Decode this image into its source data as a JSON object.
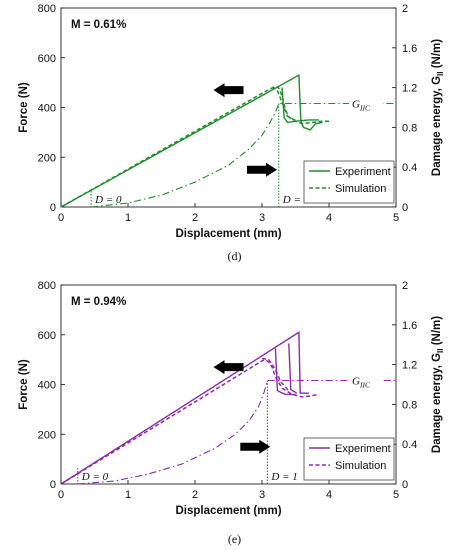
{
  "chart_data": [
    {
      "type": "line",
      "caption": "(d)",
      "annotation": "M = 0.61%",
      "color": "#1e8c2e",
      "xlabel": "Displacement (mm)",
      "ylabel": "Force (N)",
      "y2label_main": "Damage energy, G",
      "y2label_sub": "II",
      "y2label_unit": " (N/m)",
      "xlim": [
        0,
        5
      ],
      "ylim": [
        0,
        800
      ],
      "y2lim": [
        0,
        2
      ],
      "x_ticks": [
        "0",
        "1",
        "2",
        "3",
        "4",
        "5"
      ],
      "y_ticks": [
        "0",
        "200",
        "400",
        "600",
        "800"
      ],
      "y2_ticks": [
        "0",
        "0.4",
        "0.8",
        "1.2",
        "1.6",
        "2"
      ],
      "legend": {
        "position": "bottom-right",
        "entries": [
          "Experiment",
          "Simulation"
        ]
      },
      "series": [
        {
          "name": "Experiment",
          "style": "solid",
          "points": [
            [
              0,
              0
            ],
            [
              3.55,
              530
            ],
            [
              3.58,
              345
            ],
            [
              3.62,
              320
            ],
            [
              3.72,
              310
            ],
            [
              3.8,
              335
            ],
            [
              3.9,
              340
            ]
          ]
        },
        {
          "name": "",
          "style": "solid",
          "points": [
            [
              3.3,
              480
            ],
            [
              3.33,
              360
            ],
            [
              3.38,
              340
            ],
            [
              3.5,
              345
            ],
            [
              3.7,
              350
            ],
            [
              3.85,
              350
            ]
          ]
        },
        {
          "name": "Simulation",
          "style": "dashed",
          "points": [
            [
              0,
              0
            ],
            [
              3.1,
              472
            ],
            [
              3.2,
              485
            ],
            [
              3.25,
              478
            ],
            [
              3.3,
              445
            ],
            [
              3.35,
              390
            ],
            [
              3.4,
              362
            ],
            [
              3.5,
              345
            ],
            [
              3.6,
              335
            ],
            [
              3.75,
              340
            ],
            [
              3.9,
              345
            ],
            [
              4.0,
              345
            ]
          ]
        },
        {
          "name": "",
          "style": "dashed",
          "points": [
            [
              3.15,
              480
            ],
            [
              3.22,
              475
            ],
            [
              3.3,
              420
            ],
            [
              3.38,
              365
            ],
            [
              3.5,
              348
            ]
          ]
        },
        {
          "name": "Damage energy",
          "style": "dashdot",
          "axis": "y2",
          "points": [
            [
              0.45,
              0
            ],
            [
              1.0,
              0.04
            ],
            [
              1.5,
              0.12
            ],
            [
              2.0,
              0.25
            ],
            [
              2.5,
              0.42
            ],
            [
              2.8,
              0.58
            ],
            [
              3.0,
              0.72
            ],
            [
              3.12,
              0.85
            ],
            [
              3.2,
              0.95
            ],
            [
              3.25,
              1.04
            ],
            [
              3.3,
              1.04
            ],
            [
              5.0,
              1.04
            ]
          ]
        }
      ],
      "markers": [
        {
          "label": "D = 0",
          "x": 0.45
        },
        {
          "label": "D = 1",
          "x": 3.25
        }
      ],
      "gic_label": "G",
      "gic_sub": "IIC",
      "arrows": [
        {
          "direction": "left",
          "x": 2.5,
          "y": 470
        },
        {
          "direction": "right",
          "x": 3.0,
          "y": 150
        }
      ]
    },
    {
      "type": "line",
      "caption": "(e)",
      "annotation": "M = 0.94%",
      "color": "#8a2ba8",
      "xlabel": "Displacement (mm)",
      "ylabel": "Force (N)",
      "y2label_main": "Damage energy, G",
      "y2label_sub": "II",
      "y2label_unit": " (N/m)",
      "xlim": [
        0,
        5
      ],
      "ylim": [
        0,
        800
      ],
      "y2lim": [
        0,
        2
      ],
      "x_ticks": [
        "0",
        "1",
        "2",
        "3",
        "4",
        "5"
      ],
      "y_ticks": [
        "0",
        "200",
        "400",
        "600",
        "800"
      ],
      "y2_ticks": [
        "0",
        "0.4",
        "0.8",
        "1.2",
        "1.6",
        "2"
      ],
      "legend": {
        "position": "bottom-right",
        "entries": [
          "Experiment",
          "Simulation"
        ]
      },
      "series": [
        {
          "name": "Experiment",
          "style": "solid",
          "points": [
            [
              0,
              0
            ],
            [
              3.55,
              610
            ],
            [
              3.57,
              365
            ],
            [
              3.7,
              365
            ]
          ]
        },
        {
          "name": "",
          "style": "solid",
          "points": [
            [
              3.2,
              545
            ],
            [
              3.23,
              375
            ],
            [
              3.35,
              360
            ],
            [
              3.5,
              360
            ]
          ]
        },
        {
          "name": "",
          "style": "solid",
          "points": [
            [
              3.4,
              565
            ],
            [
              3.43,
              380
            ],
            [
              3.52,
              365
            ]
          ]
        },
        {
          "name": "Simulation",
          "style": "dashed",
          "points": [
            [
              0,
              0
            ],
            [
              3.0,
              495
            ],
            [
              3.05,
              500
            ],
            [
              3.1,
              490
            ],
            [
              3.15,
              470
            ],
            [
              3.2,
              430
            ],
            [
              3.3,
              385
            ],
            [
              3.45,
              360
            ],
            [
              3.6,
              350
            ],
            [
              3.75,
              355
            ],
            [
              3.85,
              360
            ]
          ]
        },
        {
          "name": "",
          "style": "dashed",
          "points": [
            [
              3.0,
              505
            ],
            [
              3.1,
              500
            ],
            [
              3.2,
              460
            ],
            [
              3.28,
              410
            ],
            [
              3.4,
              375
            ]
          ]
        },
        {
          "name": "Damage energy",
          "style": "dashdot",
          "axis": "y2",
          "points": [
            [
              0.25,
              0
            ],
            [
              0.8,
              0.03
            ],
            [
              1.3,
              0.1
            ],
            [
              1.8,
              0.2
            ],
            [
              2.3,
              0.36
            ],
            [
              2.6,
              0.5
            ],
            [
              2.8,
              0.63
            ],
            [
              2.95,
              0.78
            ],
            [
              3.03,
              0.92
            ],
            [
              3.08,
              1.04
            ],
            [
              3.15,
              1.04
            ],
            [
              5.0,
              1.04
            ]
          ]
        }
      ],
      "markers": [
        {
          "label": "D = 0",
          "x": 0.25
        },
        {
          "label": "D = 1",
          "x": 3.08
        }
      ],
      "gic_label": "G",
      "gic_sub": "IIC",
      "arrows": [
        {
          "direction": "left",
          "x": 2.5,
          "y": 470
        },
        {
          "direction": "right",
          "x": 2.9,
          "y": 150
        }
      ]
    }
  ]
}
